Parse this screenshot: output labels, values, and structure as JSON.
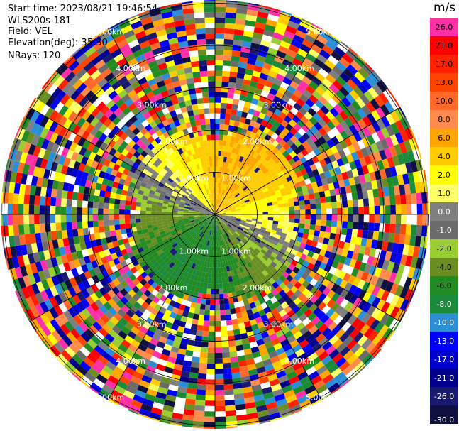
{
  "info": {
    "start_time": "Start time: 2023/08/21 19:46:54",
    "station": "WLS200s-181",
    "field": "Field: VEL",
    "elevation": "Elevation(deg): 35.30",
    "nrays": "NRays: 120"
  },
  "colorbar": {
    "unit": "m/s",
    "labels": [
      "26.0",
      "21.0",
      "17.0",
      "13.0",
      "10.0",
      "8.0",
      "6.0",
      "4.0",
      "2.0",
      "1.0",
      "0.0",
      "-1.0",
      "-2.0",
      "-4.0",
      "-6.0",
      "-8.0",
      "-10.0",
      "-13.0",
      "-17.0",
      "-21.0",
      "-26.0",
      "-30.0"
    ],
    "colors": [
      "#ff2fa8",
      "#ff0000",
      "#ff2200",
      "#ff4400",
      "#ff6a2a",
      "#ff8c4d",
      "#ffa500",
      "#ffcc00",
      "#ffff00",
      "#ffff66",
      "#7f7f7f",
      "#6b6b6b",
      "#9acd32",
      "#6b8e23",
      "#228b22",
      "#1b8a3a",
      "#2c8fd6",
      "#0000ff",
      "#0000cd",
      "#00008b",
      "#191970",
      "#101040"
    ]
  },
  "ring_labels": [
    "1.00km",
    "2.00km",
    "3.00km",
    "4.00km",
    "5.00km"
  ],
  "colors": {
    "ring_line": "#000000",
    "background": "#ffffff"
  }
}
